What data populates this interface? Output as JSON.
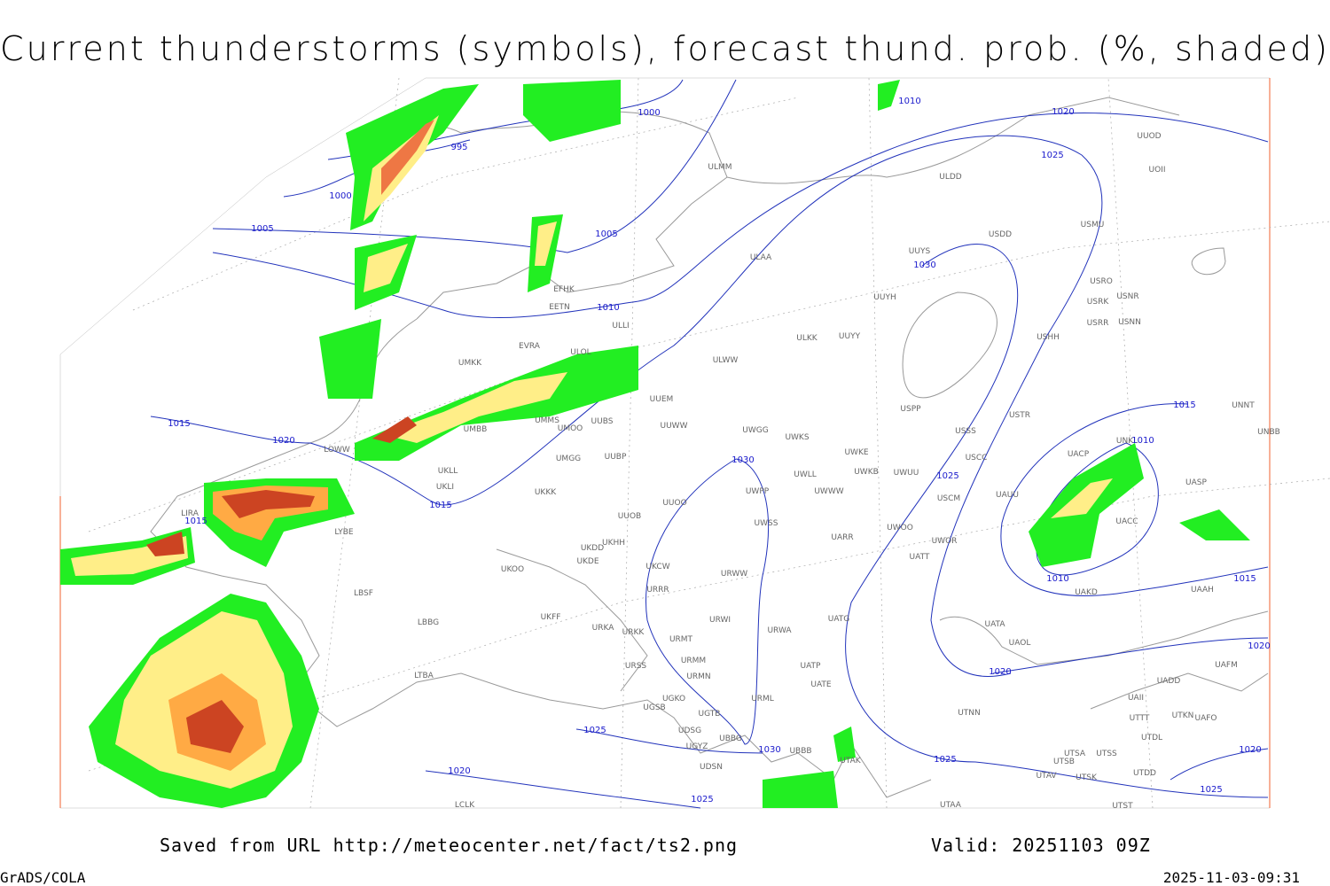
{
  "header": {
    "title": "Current thunderstorms (symbols), forecast thund. prob. (%, shaded)"
  },
  "map": {
    "isobar_labels": [
      1000,
      995,
      1000,
      1005,
      1005,
      1010,
      1020,
      1025,
      1030,
      1010,
      1015,
      1020,
      1015,
      1010,
      1030,
      1025,
      1015,
      1015,
      1010,
      1015,
      1020,
      1020,
      1025,
      1030,
      1020,
      1025,
      1020,
      1025,
      1025
    ],
    "stations": [
      "ULMM",
      "ULDD",
      "USDD",
      "USMU",
      "UUYS",
      "ULAA",
      "USRO",
      "UUYH",
      "USRK",
      "USNR",
      "USRR",
      "USNN",
      "EFHK",
      "EETN",
      "ULLI",
      "EVRA",
      "ULOL",
      "UMKK",
      "ULWW",
      "ULKK",
      "UUYY",
      "USHH",
      "UUEM",
      "USPP",
      "USTR",
      "UNNT",
      "UNBB",
      "UMMS",
      "UMOO",
      "UUBS",
      "UMBB",
      "UUWW",
      "UWGG",
      "UWKS",
      "USSS",
      "UWKE",
      "UNKL",
      "UMGG",
      "UUBP",
      "UKLL",
      "UWKB",
      "UWUU",
      "USCC",
      "UACP",
      "UWLL",
      "UKLI",
      "UWPP",
      "UWWW",
      "USCM",
      "UAUU",
      "UASP",
      "UKKK",
      "UUOO",
      "UUOB",
      "UWSS",
      "UWOO",
      "UACC",
      "UKHH",
      "UKDD",
      "UARR",
      "UWOR",
      "LYBE",
      "LBSF",
      "LOWW",
      "LIRA",
      "UKOO",
      "UKDE",
      "UKCW",
      "URWW",
      "UATT",
      "URRR",
      "UAKD",
      "UAAH",
      "UKFF",
      "LBBG",
      "URWI",
      "UATG",
      "URKA",
      "URKK",
      "URMT",
      "URWA",
      "UATA",
      "UAOL",
      "URSS",
      "URMM",
      "UATP",
      "UATE",
      "URMN",
      "LTBA",
      "UAFM",
      "UAII",
      "UADD",
      "URML",
      "UGKO",
      "UGSB",
      "UGTB",
      "UTNN",
      "UTTT",
      "UTKN",
      "UAFO",
      "UDSG",
      "UTDL",
      "UGYZ",
      "UBBG",
      "UBBB",
      "UTAK",
      "UTSA",
      "UTSS",
      "UTSB",
      "UDSN",
      "UTDD",
      "UTAV",
      "UTSK",
      "UTAA",
      "LCLK",
      "UTST",
      "UUOD",
      "UOII"
    ]
  },
  "footer": {
    "source": "Saved from URL http://meteocenter.net/fact/ts2.png",
    "valid": "Valid: 20251103 09Z",
    "software": "GrADS/COLA",
    "timestamp": "2025-11-03-09:31"
  }
}
